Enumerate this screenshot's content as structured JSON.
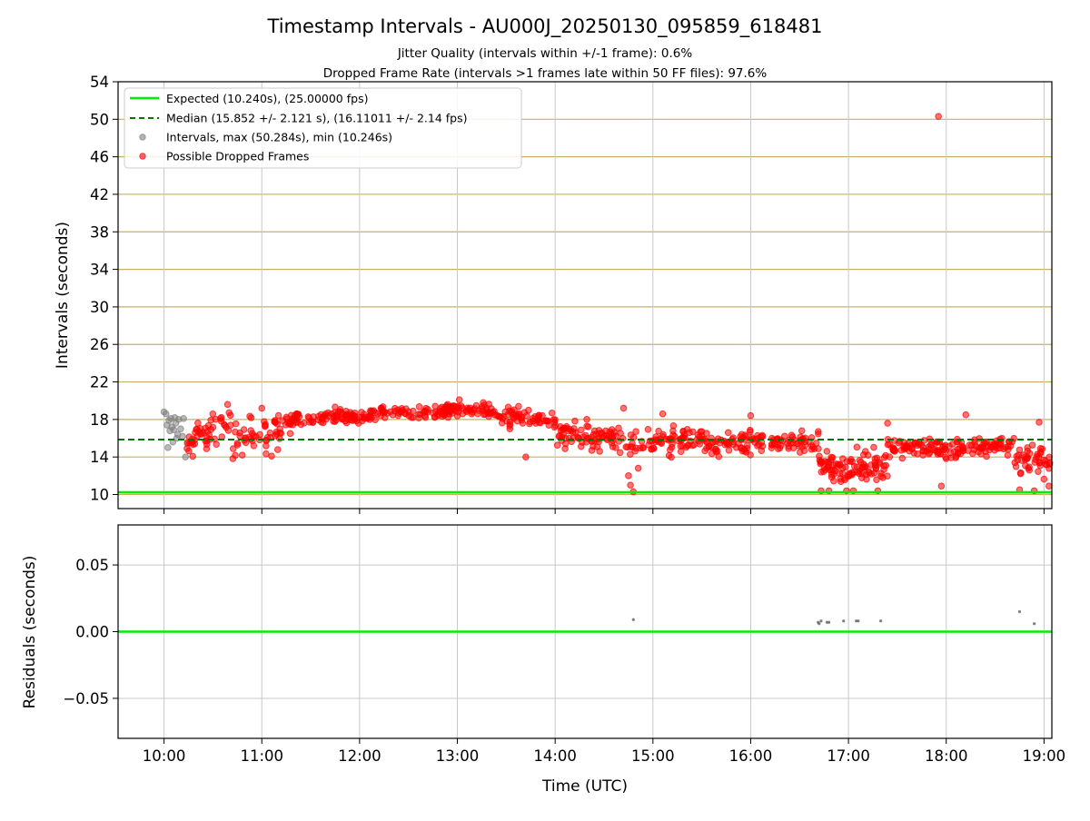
{
  "title": "Timestamp Intervals - AU000J_20250130_095859_618481",
  "subtitle_1": "Jitter Quality (intervals within +/-1 frame): 0.6%",
  "subtitle_2": "Dropped Frame Rate (intervals >1 frames late within 50 FF files): 97.6%",
  "colors": {
    "expected": "#00ee00",
    "median": "#007700",
    "intervals": "#808080",
    "dropped": "#ff0000",
    "hgrid": "#c8b060",
    "vgrid": "#c8c8c8"
  },
  "chart_data": [
    {
      "type": "scatter",
      "ylabel": "Intervals (seconds)",
      "ylim": [
        8.5,
        54
      ],
      "xlim_hours": [
        9.53,
        19.08
      ],
      "y_ticks": [
        10,
        14,
        18,
        22,
        26,
        30,
        34,
        38,
        42,
        46,
        50,
        54
      ],
      "y_tick_labels": [
        "10",
        "14",
        "18",
        "22",
        "26",
        "30",
        "34",
        "38",
        "42",
        "46",
        "50",
        "54"
      ],
      "legend_position": "top-left",
      "legend": {
        "expected": "Expected (10.240s), (25.00000 fps)",
        "median": "Median (15.852 +/- 2.121 s), (16.11011 +/- 2.14 fps)",
        "intervals": "Intervals, max (50.284s), min (10.246s)",
        "dropped": "Possible Dropped Frames"
      },
      "expected_value": 10.24,
      "median_value": 15.852,
      "intervals_points": [
        [
          10.0,
          18.8
        ],
        [
          10.02,
          18.6
        ],
        [
          10.03,
          17.4
        ],
        [
          10.05,
          17.9
        ],
        [
          10.06,
          16.8
        ],
        [
          10.07,
          18.1
        ],
        [
          10.08,
          17.2
        ],
        [
          10.1,
          16.9
        ],
        [
          10.11,
          18.2
        ],
        [
          10.12,
          17.6
        ],
        [
          10.14,
          16.4
        ],
        [
          10.15,
          18.0
        ],
        [
          10.17,
          17.0
        ],
        [
          10.19,
          16.2
        ],
        [
          10.2,
          18.1
        ],
        [
          10.04,
          15.0
        ],
        [
          10.09,
          15.6
        ],
        [
          10.13,
          16.0
        ],
        [
          10.22,
          14.0
        ],
        [
          10.24,
          15.4
        ]
      ],
      "dropped_segments": [
        {
          "x0": 10.22,
          "x1": 10.7,
          "y0": 15.2,
          "y1": 18.2,
          "spread": 1.3,
          "n": 50
        },
        {
          "x0": 10.7,
          "x1": 11.3,
          "y0": 15.8,
          "y1": 17.6,
          "spread": 1.6,
          "n": 60
        },
        {
          "x0": 11.3,
          "x1": 12.0,
          "y0": 18.0,
          "y1": 18.4,
          "spread": 0.7,
          "n": 80
        },
        {
          "x0": 12.0,
          "x1": 13.3,
          "y0": 18.6,
          "y1": 19.1,
          "spread": 0.6,
          "n": 130
        },
        {
          "x0": 13.3,
          "x1": 14.0,
          "y0": 18.6,
          "y1": 17.6,
          "spread": 0.9,
          "n": 70
        },
        {
          "x0": 14.0,
          "x1": 14.9,
          "y0": 16.8,
          "y1": 15.4,
          "spread": 1.3,
          "n": 95
        },
        {
          "x0": 14.9,
          "x1": 15.7,
          "y0": 16.0,
          "y1": 15.2,
          "spread": 1.3,
          "n": 90
        },
        {
          "x0": 15.7,
          "x1": 16.7,
          "y0": 15.6,
          "y1": 15.6,
          "spread": 1.0,
          "n": 100
        },
        {
          "x0": 16.7,
          "x1": 17.4,
          "y0": 12.8,
          "y1": 13.2,
          "spread": 1.4,
          "n": 100
        },
        {
          "x0": 17.4,
          "x1": 18.1,
          "y0": 15.0,
          "y1": 14.8,
          "spread": 0.9,
          "n": 80
        },
        {
          "x0": 18.1,
          "x1": 18.7,
          "y0": 15.0,
          "y1": 15.2,
          "spread": 0.9,
          "n": 65
        },
        {
          "x0": 18.7,
          "x1": 19.08,
          "y0": 13.8,
          "y1": 13.4,
          "spread": 1.3,
          "n": 45
        }
      ],
      "dropped_outliers": [
        [
          17.92,
          50.3
        ],
        [
          14.8,
          10.3
        ],
        [
          14.77,
          11.0
        ],
        [
          14.75,
          12.0
        ],
        [
          16.72,
          10.4
        ],
        [
          16.8,
          10.4
        ],
        [
          16.98,
          10.4
        ],
        [
          17.05,
          10.4
        ],
        [
          17.3,
          10.4
        ],
        [
          18.9,
          10.4
        ],
        [
          18.75,
          10.5
        ],
        [
          19.05,
          10.9
        ],
        [
          17.95,
          10.9
        ],
        [
          13.02,
          20.1
        ],
        [
          12.9,
          19.6
        ],
        [
          10.65,
          19.6
        ],
        [
          11.0,
          19.2
        ],
        [
          14.7,
          19.2
        ],
        [
          15.1,
          18.6
        ],
        [
          16.0,
          18.4
        ],
        [
          17.4,
          17.6
        ],
        [
          18.2,
          18.5
        ],
        [
          18.95,
          17.7
        ],
        [
          10.8,
          14.2
        ],
        [
          11.1,
          14.1
        ],
        [
          13.7,
          14.0
        ],
        [
          14.85,
          12.8
        ]
      ]
    },
    {
      "type": "scatter",
      "xlabel": "Time (UTC)",
      "ylabel": "Residuals (seconds)",
      "ylim": [
        -0.08,
        0.08
      ],
      "xlim_hours": [
        9.53,
        19.08
      ],
      "y_ticks": [
        -0.05,
        0.0,
        0.05
      ],
      "y_tick_labels": [
        "−0.05",
        "0.00",
        "0.05"
      ],
      "x_ticks": [
        10,
        11,
        12,
        13,
        14,
        15,
        16,
        17,
        18,
        19
      ],
      "x_tick_labels": [
        "10:00",
        "11:00",
        "12:00",
        "13:00",
        "14:00",
        "15:00",
        "16:00",
        "17:00",
        "18:00",
        "19:00"
      ],
      "zero_line": 0.0,
      "points": [
        [
          14.8,
          0.009
        ],
        [
          16.69,
          0.007
        ],
        [
          16.7,
          0.006
        ],
        [
          16.72,
          0.008
        ],
        [
          16.78,
          0.007
        ],
        [
          16.8,
          0.007
        ],
        [
          16.95,
          0.008
        ],
        [
          17.08,
          0.008
        ],
        [
          17.1,
          0.008
        ],
        [
          17.33,
          0.008
        ],
        [
          18.75,
          0.015
        ],
        [
          18.9,
          0.006
        ]
      ]
    }
  ]
}
